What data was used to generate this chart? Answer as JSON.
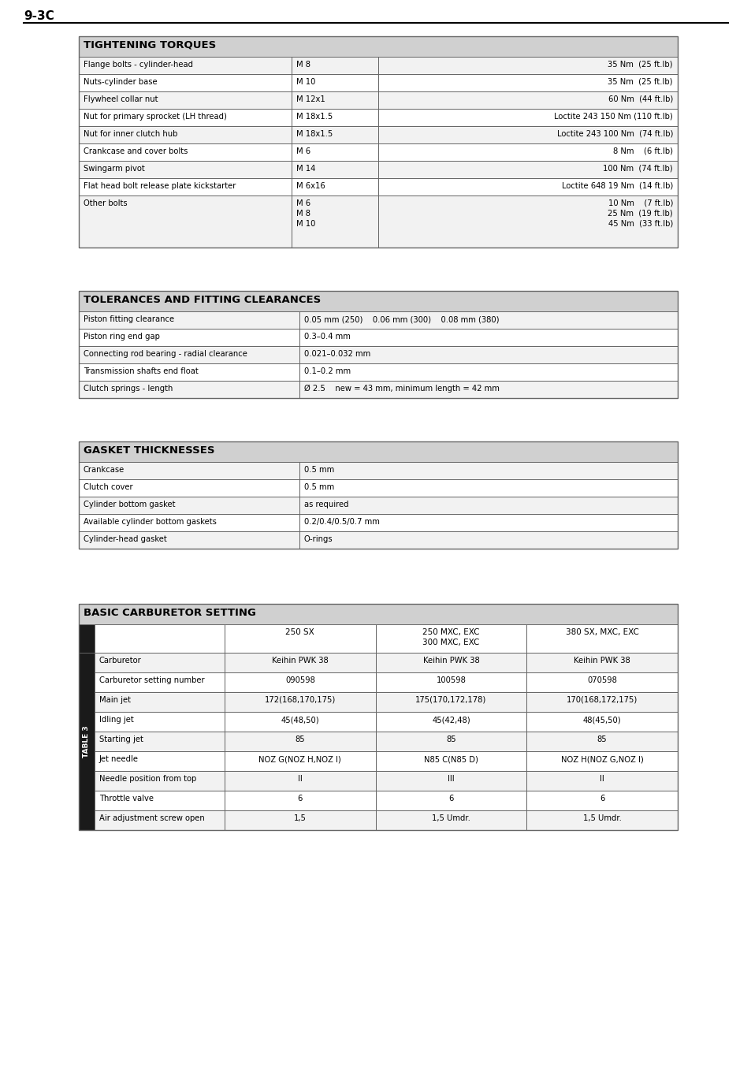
{
  "page_label": "9-3C",
  "table1_title": "TIGHTENING TORQUES",
  "table1_rows": [
    [
      "Flange bolts - cylinder-head",
      "M 8",
      "35 Nm  (25 ft.lb)"
    ],
    [
      "Nuts-cylinder base",
      "M 10",
      "35 Nm  (25 ft.lb)"
    ],
    [
      "Flywheel collar nut",
      "M 12x1",
      "60 Nm  (44 ft.lb)"
    ],
    [
      "Nut for primary sprocket (LH thread)",
      "M 18x1.5",
      "Loctite 243 150 Nm (110 ft.lb)"
    ],
    [
      "Nut for inner clutch hub",
      "M 18x1.5",
      "Loctite 243 100 Nm  (74 ft.lb)"
    ],
    [
      "Crankcase and cover bolts",
      "M 6",
      "8 Nm    (6 ft.lb)"
    ],
    [
      "Swingarm pivot",
      "M 14",
      "100 Nm  (74 ft.lb)"
    ],
    [
      "Flat head bolt release plate kickstarter",
      "M 6x16",
      "Loctite 648 19 Nm  (14 ft.lb)"
    ],
    [
      "Other bolts",
      "M 6\nM 8\nM 10",
      "10 Nm    (7 ft.lb)\n25 Nm  (19 ft.lb)\n45 Nm  (33 ft.lb)"
    ]
  ],
  "table2_title": "TOLERANCES AND FITTING CLEARANCES",
  "table2_rows": [
    [
      "Piston fitting clearance",
      "0.05 mm (250)    0.06 mm (300)    0.08 mm (380)"
    ],
    [
      "Piston ring end gap",
      "0.3–0.4 mm"
    ],
    [
      "Connecting rod bearing - radial clearance",
      "0.021–0.032 mm"
    ],
    [
      "Transmission shafts end float",
      "0.1–0.2 mm"
    ],
    [
      "Clutch springs - length",
      "Ø 2.5    new = 43 mm, minimum length = 42 mm"
    ]
  ],
  "table3_title": "GASKET THICKNESSES",
  "table3_rows": [
    [
      "Crankcase",
      "0.5 mm"
    ],
    [
      "Clutch cover",
      "0.5 mm"
    ],
    [
      "Cylinder bottom gasket",
      "as required"
    ],
    [
      "Available cylinder bottom gaskets",
      "0.2/0.4/0.5/0.7 mm"
    ],
    [
      "Cylinder-head gasket",
      "O-rings"
    ]
  ],
  "table4_title": "BASIC CARBURETOR SETTING",
  "table4_rows": [
    [
      "Carburetor",
      "Keihin PWK 38",
      "Keihin PWK 38",
      "Keihin PWK 38"
    ],
    [
      "Carburetor setting number",
      "090598",
      "100598",
      "070598"
    ],
    [
      "Main jet",
      "172(168,170,175)",
      "175(170,172,178)",
      "170(168,172,175)"
    ],
    [
      "Idling jet",
      "45(48,50)",
      "45(42,48)",
      "48(45,50)"
    ],
    [
      "Starting jet",
      "85",
      "85",
      "85"
    ],
    [
      "Jet needle",
      "NOZ G(NOZ H,NOZ I)",
      "N85 C(N85 D)",
      "NOZ H(NOZ G,NOZ I)"
    ],
    [
      "Needle position from top",
      "II",
      "III",
      "II"
    ],
    [
      "Throttle valve",
      "6",
      "6",
      "6"
    ],
    [
      "Air adjustment screw open",
      "1,5",
      "1,5 Umdr.",
      "1,5 Umdr."
    ]
  ],
  "header_bg": "#d0d0d0",
  "page_bg": "#ffffff",
  "border_color": "#666666",
  "sidebar_bg": "#1a1a1a"
}
